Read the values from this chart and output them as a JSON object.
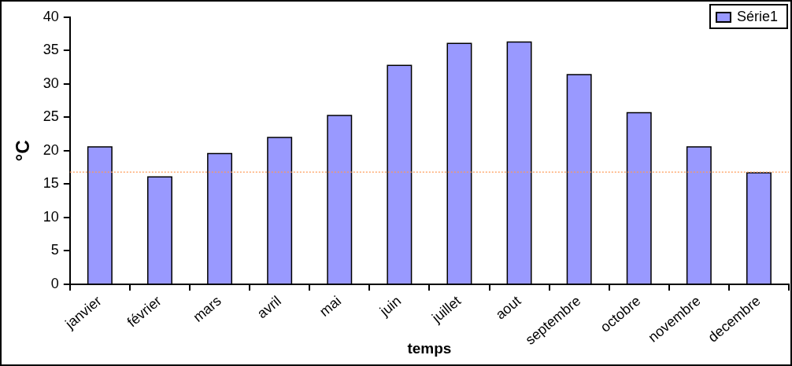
{
  "chart_data": {
    "type": "bar",
    "xlabel": "temps",
    "ylabel": "°C",
    "categories": [
      "janvier",
      "février",
      "mars",
      "avril",
      "mai",
      "juin",
      "juillet",
      "aout",
      "septembre",
      "octobre",
      "novembre",
      "decembre"
    ],
    "series": [
      {
        "name": "Série1",
        "color": "#9999ff",
        "values": [
          20.6,
          16.1,
          19.6,
          22.0,
          25.3,
          32.8,
          36.1,
          36.3,
          31.4,
          25.7,
          20.6,
          16.7
        ]
      }
    ],
    "ylim": [
      0,
      40
    ],
    "yticks": [
      0,
      5,
      10,
      15,
      20,
      25,
      30,
      35,
      40
    ],
    "ref_lines": [
      {
        "axis": "y",
        "value": 16.8,
        "color": "#ff9955",
        "line_style": "dotted"
      }
    ],
    "grid": false,
    "legend": "top right"
  }
}
